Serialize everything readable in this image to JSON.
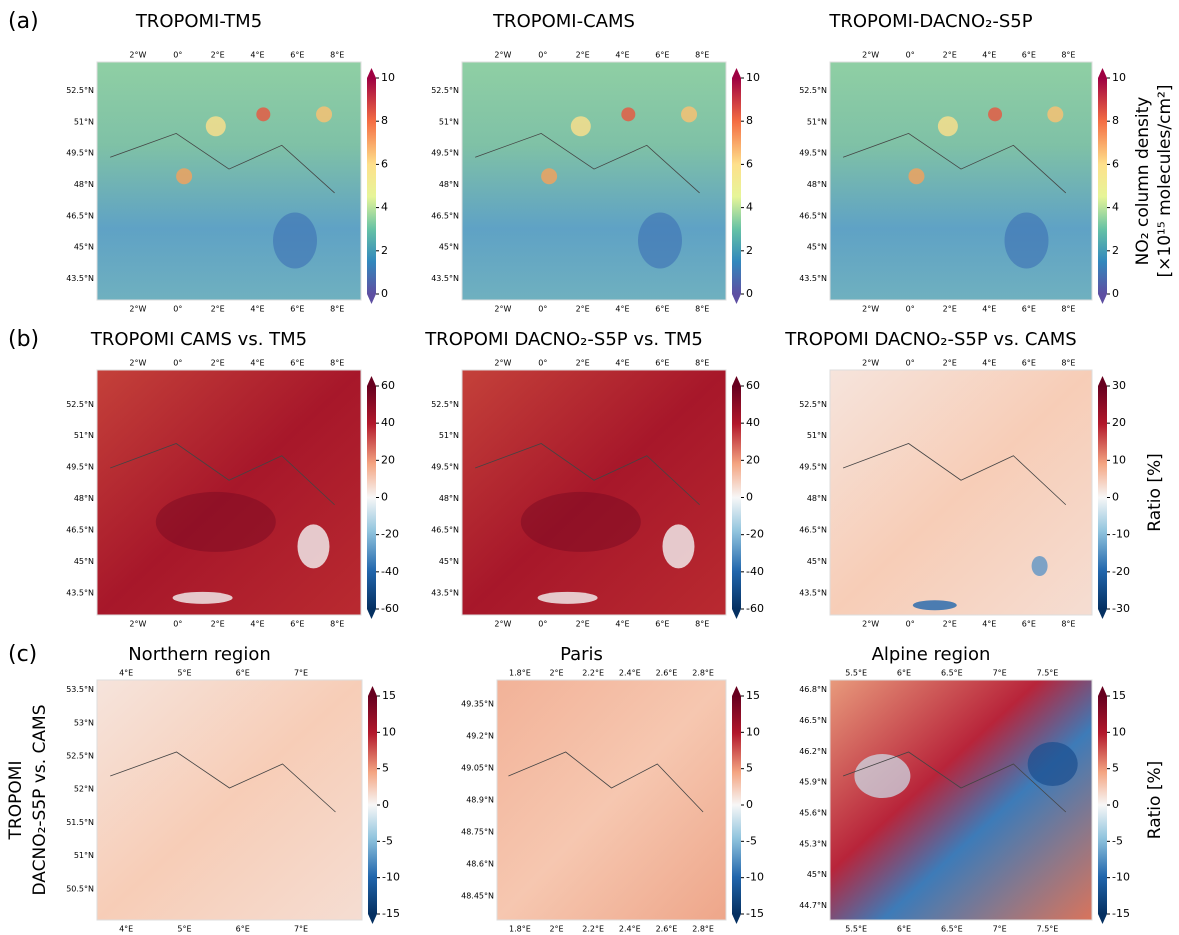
{
  "panel_labels": [
    "(a)",
    "(b)",
    "(c)"
  ],
  "rows": [
    {
      "panels": [
        {
          "title": "TROPOMI-TM5",
          "lat_ticks": [
            "52.5°N",
            "51°N",
            "49.5°N",
            "48°N",
            "46.5°N",
            "45°N",
            "43.5°N"
          ],
          "lon_ticks": [
            "2°W",
            "0°",
            "2°E",
            "4°E",
            "6°E",
            "8°E"
          ],
          "colorbar": {
            "lim": [
              0,
              10
            ],
            "ticks": [
              0,
              2,
              4,
              6,
              8,
              10
            ]
          }
        },
        {
          "title": "TROPOMI-CAMS",
          "lat_ticks": [
            "52.5°N",
            "51°N",
            "49.5°N",
            "48°N",
            "46.5°N",
            "45°N",
            "43.5°N"
          ],
          "lon_ticks": [
            "2°W",
            "0°",
            "2°E",
            "4°E",
            "6°E",
            "8°E"
          ],
          "colorbar": {
            "lim": [
              0,
              10
            ],
            "ticks": [
              0,
              2,
              4,
              6,
              8,
              10
            ]
          }
        },
        {
          "title": "TROPOMI-DACNO₂-S5P",
          "lat_ticks": [
            "52.5°N",
            "51°N",
            "49.5°N",
            "48°N",
            "46.5°N",
            "45°N",
            "43.5°N"
          ],
          "lon_ticks": [
            "2°W",
            "0°",
            "2°E",
            "4°E",
            "6°E",
            "8°E"
          ],
          "colorbar": {
            "lim": [
              0,
              10
            ],
            "ticks": [
              0,
              2,
              4,
              6,
              8,
              10
            ]
          }
        }
      ],
      "colorbar_label": [
        "NO₂ column density",
        "[×10¹⁵ molecules/cm²]"
      ]
    },
    {
      "panels": [
        {
          "title": "TROPOMI CAMS vs. TM5",
          "lat_ticks": [
            "52.5°N",
            "51°N",
            "49.5°N",
            "48°N",
            "46.5°N",
            "45°N",
            "43.5°N"
          ],
          "lon_ticks": [
            "2°W",
            "0°",
            "2°E",
            "4°E",
            "6°E",
            "8°E"
          ],
          "colorbar": {
            "lim": [
              -60,
              60
            ],
            "ticks": [
              -60,
              -40,
              -20,
              0,
              20,
              40,
              60
            ]
          }
        },
        {
          "title": "TROPOMI DACNO₂-S5P vs. TM5",
          "lat_ticks": [
            "52.5°N",
            "51°N",
            "49.5°N",
            "48°N",
            "46.5°N",
            "45°N",
            "43.5°N"
          ],
          "lon_ticks": [
            "2°W",
            "0°",
            "2°E",
            "4°E",
            "6°E",
            "8°E"
          ],
          "colorbar": {
            "lim": [
              -60,
              60
            ],
            "ticks": [
              -60,
              -40,
              -20,
              0,
              20,
              40,
              60
            ]
          }
        },
        {
          "title": "TROPOMI DACNO₂-S5P vs. CAMS",
          "lat_ticks": [
            "52.5°N",
            "51°N",
            "49.5°N",
            "48°N",
            "46.5°N",
            "45°N",
            "43.5°N"
          ],
          "lon_ticks": [
            "2°W",
            "0°",
            "2°E",
            "4°E",
            "6°E",
            "8°E"
          ],
          "colorbar": {
            "lim": [
              -30,
              30
            ],
            "ticks": [
              -30,
              -20,
              -10,
              0,
              10,
              20,
              30
            ]
          }
        }
      ],
      "colorbar_label": "Ratio [%]"
    },
    {
      "panels": [
        {
          "title": "Northern region",
          "lat_ticks": [
            "53.5°N",
            "53°N",
            "52.5°N",
            "52°N",
            "51.5°N",
            "51°N",
            "50.5°N"
          ],
          "lon_ticks": [
            "4°E",
            "5°E",
            "6°E",
            "7°E"
          ],
          "colorbar": {
            "lim": [
              -15,
              15
            ],
            "ticks": [
              -15,
              -10,
              -5,
              0,
              5,
              10,
              15
            ]
          }
        },
        {
          "title": "Paris",
          "lat_ticks": [
            "49.35°N",
            "49.2°N",
            "49.05°N",
            "48.9°N",
            "48.75°N",
            "48.6°N",
            "48.45°N"
          ],
          "lon_ticks": [
            "1.8°E",
            "2°E",
            "2.2°E",
            "2.4°E",
            "2.6°E",
            "2.8°E"
          ],
          "colorbar": {
            "lim": [
              -15,
              15
            ],
            "ticks": [
              -15,
              -10,
              -5,
              0,
              5,
              10,
              15
            ]
          }
        },
        {
          "title": "Alpine region",
          "lat_ticks": [
            "46.8°N",
            "46.5°N",
            "46.2°N",
            "45.9°N",
            "45.6°N",
            "45.3°N",
            "45°N",
            "44.7°N"
          ],
          "lon_ticks": [
            "5.5°E",
            "6°E",
            "6.5°E",
            "7°E",
            "7.5°E"
          ],
          "colorbar": {
            "lim": [
              -15,
              15
            ],
            "ticks": [
              -15,
              -10,
              -5,
              0,
              5,
              10,
              15
            ]
          }
        }
      ],
      "colorbar_label": "Ratio [%]",
      "side_label": [
        "TROPOMI",
        "DACNO₂-S5P vs. CAMS"
      ]
    }
  ]
}
